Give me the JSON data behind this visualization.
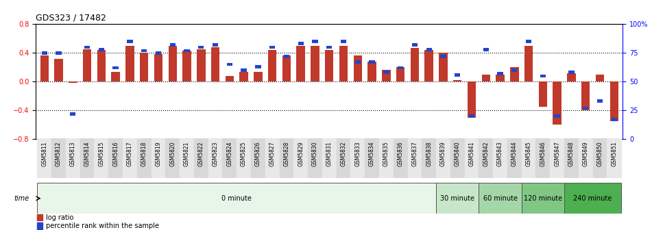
{
  "title": "GDS323 / 17482",
  "samples": [
    "GSM5811",
    "GSM5812",
    "GSM5813",
    "GSM5814",
    "GSM5815",
    "GSM5816",
    "GSM5817",
    "GSM5818",
    "GSM5819",
    "GSM5820",
    "GSM5821",
    "GSM5822",
    "GSM5823",
    "GSM5824",
    "GSM5825",
    "GSM5826",
    "GSM5827",
    "GSM5828",
    "GSM5829",
    "GSM5830",
    "GSM5831",
    "GSM5832",
    "GSM5833",
    "GSM5834",
    "GSM5835",
    "GSM5836",
    "GSM5837",
    "GSM5838",
    "GSM5839",
    "GSM5840",
    "GSM5841",
    "GSM5842",
    "GSM5843",
    "GSM5844",
    "GSM5845",
    "GSM5846",
    "GSM5847",
    "GSM5848",
    "GSM5849",
    "GSM5850",
    "GSM5851"
  ],
  "log_ratio": [
    0.36,
    0.32,
    -0.02,
    0.45,
    0.44,
    0.14,
    0.5,
    0.4,
    0.38,
    0.5,
    0.43,
    0.45,
    0.48,
    0.08,
    0.14,
    0.14,
    0.44,
    0.36,
    0.5,
    0.5,
    0.44,
    0.5,
    0.36,
    0.28,
    0.16,
    0.2,
    0.47,
    0.44,
    0.4,
    0.02,
    -0.5,
    0.1,
    0.1,
    0.2,
    0.5,
    -0.35,
    -0.6,
    0.12,
    -0.4,
    0.1,
    -0.55
  ],
  "percentile": [
    75,
    75,
    22,
    80,
    78,
    62,
    85,
    77,
    75,
    82,
    77,
    80,
    82,
    65,
    60,
    63,
    80,
    72,
    83,
    85,
    80,
    85,
    67,
    67,
    58,
    62,
    82,
    78,
    72,
    56,
    20,
    78,
    57,
    60,
    85,
    55,
    20,
    58,
    27,
    33,
    17
  ],
  "time_groups": [
    {
      "label": "0 minute",
      "start": 0,
      "end": 28,
      "color": "#e8f5e9"
    },
    {
      "label": "30 minute",
      "start": 28,
      "end": 31,
      "color": "#c8e6c9"
    },
    {
      "label": "60 minute",
      "start": 31,
      "end": 34,
      "color": "#a5d6a7"
    },
    {
      "label": "120 minute",
      "start": 34,
      "end": 37,
      "color": "#81c784"
    },
    {
      "label": "240 minute",
      "start": 37,
      "end": 41,
      "color": "#4caf50"
    }
  ],
  "bar_color": "#c0392b",
  "dot_color": "#2244cc",
  "ylim_left": [
    -0.8,
    0.8
  ],
  "ylim_right": [
    0,
    100
  ],
  "yticks_left": [
    -0.8,
    -0.4,
    0.0,
    0.4,
    0.8
  ],
  "yticks_right": [
    0,
    25,
    50,
    75,
    100
  ],
  "ytick_labels_right": [
    "0",
    "25",
    "50",
    "75",
    "100%"
  ],
  "hlines": [
    0.4,
    0.0,
    -0.4
  ],
  "background_color": "#ffffff"
}
